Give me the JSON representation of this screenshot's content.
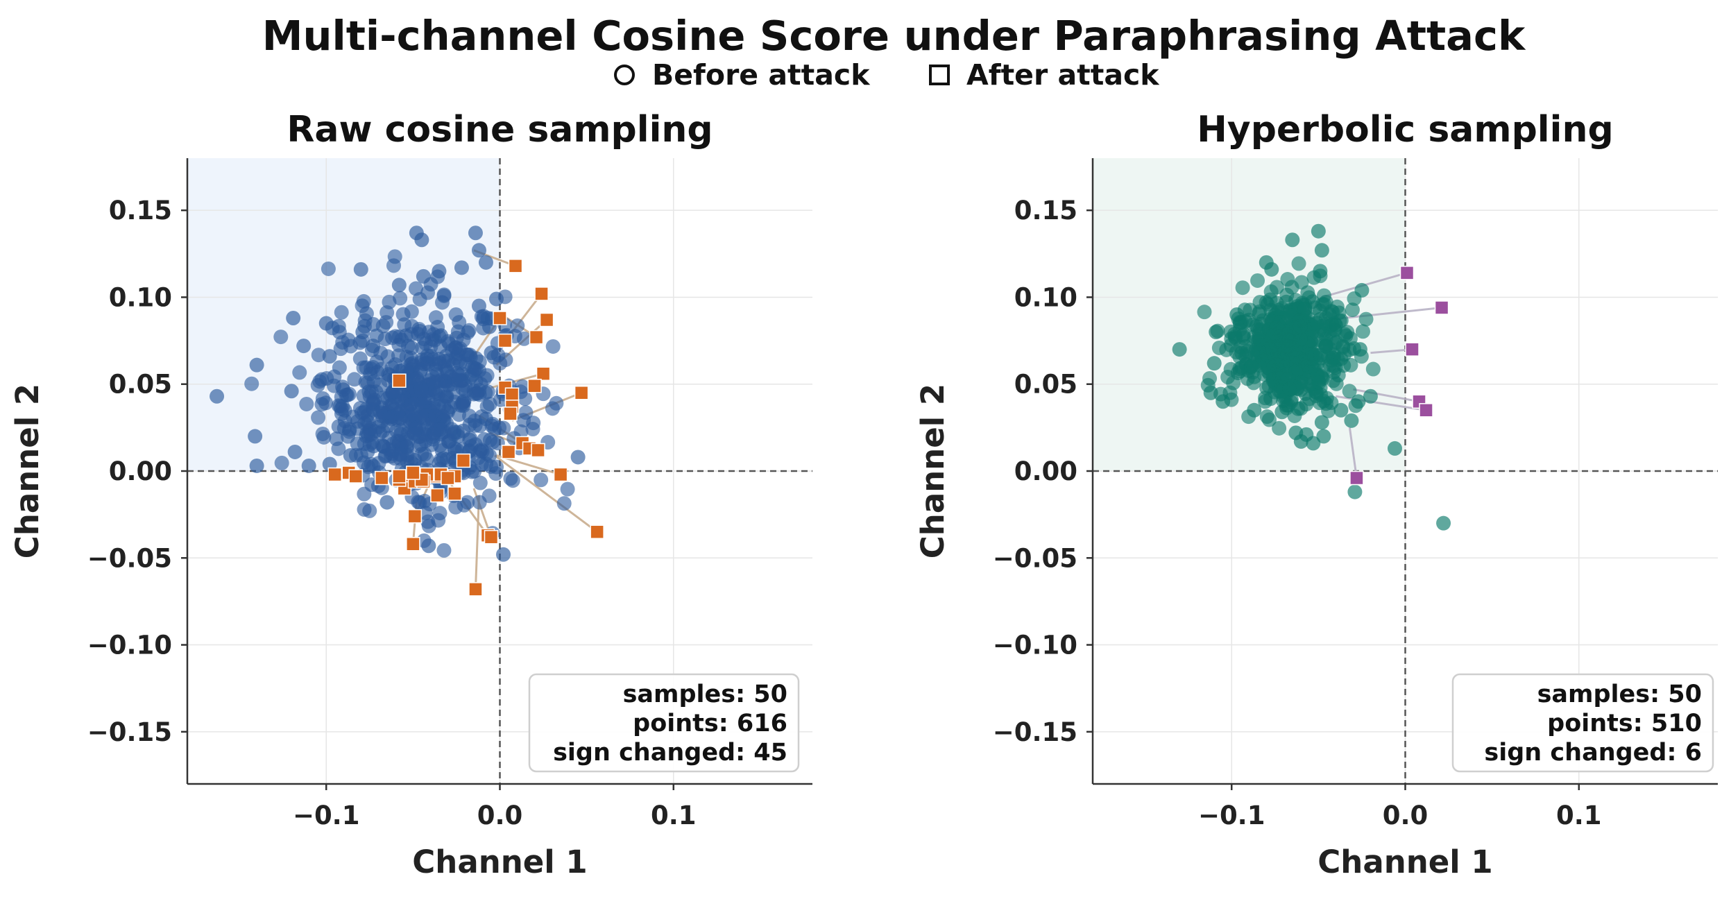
{
  "figure": {
    "title": "Multi-channel Cosine Score under Paraphrasing Attack",
    "legend": [
      {
        "marker": "circle",
        "label": "Before attack"
      },
      {
        "marker": "square",
        "label": "After attack"
      }
    ]
  },
  "chart_data": [
    {
      "type": "scatter",
      "title": "Raw cosine sampling",
      "xlabel": "Channel 1",
      "ylabel": "Channel 2",
      "xlim": [
        -0.18,
        0.18
      ],
      "ylim": [
        -0.18,
        0.18
      ],
      "xticks": [
        -0.1,
        0.0,
        0.1
      ],
      "xtick_labels": [
        "−0.1",
        "0.0",
        "0.1"
      ],
      "yticks": [
        0.15,
        0.1,
        0.05,
        0.0,
        -0.05,
        -0.1,
        -0.15
      ],
      "ytick_labels": [
        "0.15",
        "0.10",
        "0.05",
        "0.00",
        "−0.05",
        "−0.10",
        "−0.15"
      ],
      "grid": true,
      "shaded_quadrant": "upper-left",
      "colors": {
        "shade": "#eef4fc",
        "before": "#2b5a9c",
        "after": "#d9691e",
        "link": "#c9ae8e"
      },
      "stats": {
        "samples": "samples: 50",
        "points": "points: 616",
        "sign_changed": "sign changed: 45"
      },
      "before_cluster": {
        "center": [
          -0.045,
          0.04
        ],
        "spread": [
          0.028,
          0.028
        ],
        "count": 616
      },
      "before_points": [
        [
          -0.163,
          0.043
        ],
        [
          -0.14,
          0.061
        ],
        [
          -0.141,
          0.02
        ],
        [
          -0.14,
          0.003
        ],
        [
          -0.12,
          0.046
        ],
        [
          -0.113,
          0.072
        ],
        [
          -0.119,
          0.088
        ],
        [
          -0.1,
          0.085
        ],
        [
          -0.098,
          0.066
        ],
        [
          -0.118,
          0.011
        ],
        [
          -0.11,
          0.003
        ],
        [
          -0.079,
          0.08
        ],
        [
          -0.08,
          0.116
        ],
        [
          -0.058,
          0.107
        ],
        [
          -0.048,
          0.137
        ],
        [
          -0.045,
          0.133
        ],
        [
          -0.044,
          0.112
        ],
        [
          -0.035,
          0.115
        ],
        [
          -0.022,
          0.117
        ],
        [
          -0.014,
          0.137
        ],
        [
          -0.012,
          0.127
        ],
        [
          -0.008,
          0.12
        ],
        [
          -0.006,
          0.083
        ],
        [
          0.045,
          0.008
        ],
        [
          0.002,
          -0.048
        ],
        [
          -0.041,
          -0.043
        ],
        [
          -0.034,
          -0.01
        ],
        [
          -0.065,
          -0.018
        ],
        [
          -0.048,
          -0.007
        ],
        [
          -0.086,
          0.009
        ],
        [
          -0.098,
          0.004
        ],
        [
          -0.073,
          0.072
        ],
        [
          -0.034,
          0.078
        ],
        [
          -0.017,
          0.054
        ],
        [
          -0.005,
          0.068
        ],
        [
          -0.008,
          0.03
        ],
        [
          -0.024,
          0.02
        ],
        [
          -0.007,
          0.088
        ],
        [
          -0.002,
          0.099
        ],
        [
          -0.012,
          0.095
        ]
      ],
      "after_points": [
        [
          0.009,
          0.118
        ],
        [
          0.024,
          0.102
        ],
        [
          0.027,
          0.087
        ],
        [
          0.0,
          0.088
        ],
        [
          0.003,
          0.075
        ],
        [
          0.021,
          0.077
        ],
        [
          0.025,
          0.056
        ],
        [
          0.02,
          0.049
        ],
        [
          0.047,
          0.045
        ],
        [
          0.003,
          0.048
        ],
        [
          0.007,
          0.044
        ],
        [
          0.007,
          0.037
        ],
        [
          0.006,
          0.033
        ],
        [
          0.013,
          0.016
        ],
        [
          0.017,
          0.013
        ],
        [
          0.022,
          0.012
        ],
        [
          0.005,
          0.011
        ],
        [
          0.035,
          -0.002
        ],
        [
          0.056,
          -0.035
        ],
        [
          -0.007,
          -0.037
        ],
        [
          -0.005,
          -0.038
        ],
        [
          -0.014,
          -0.068
        ],
        [
          -0.05,
          -0.042
        ],
        [
          -0.049,
          -0.026
        ],
        [
          -0.036,
          -0.014
        ],
        [
          -0.026,
          -0.013
        ],
        [
          -0.053,
          -0.004
        ],
        [
          -0.055,
          -0.01
        ],
        [
          -0.049,
          -0.006
        ],
        [
          -0.037,
          -0.003
        ],
        [
          -0.034,
          -0.002
        ],
        [
          -0.042,
          -0.002
        ],
        [
          -0.058,
          -0.005
        ],
        [
          -0.087,
          -0.001
        ],
        [
          -0.083,
          -0.003
        ],
        [
          -0.095,
          -0.002
        ],
        [
          -0.068,
          -0.004
        ],
        [
          -0.021,
          0.006
        ],
        [
          -0.058,
          0.052
        ],
        [
          -0.026,
          -0.003
        ],
        [
          -0.044,
          -0.006
        ],
        [
          -0.03,
          -0.004
        ],
        [
          -0.045,
          -0.005
        ],
        [
          -0.058,
          -0.003
        ],
        [
          -0.05,
          -0.001
        ]
      ],
      "links": [
        [
          [
            0.009,
            0.118
          ],
          [
            -0.015,
            0.127
          ]
        ],
        [
          [
            0.024,
            0.102
          ],
          [
            0.004,
            0.076
          ]
        ],
        [
          [
            0.027,
            0.087
          ],
          [
            -0.002,
            0.061
          ]
        ],
        [
          [
            0.0,
            0.088
          ],
          [
            -0.015,
            0.066
          ]
        ],
        [
          [
            0.025,
            0.056
          ],
          [
            -0.005,
            0.048
          ]
        ],
        [
          [
            0.047,
            0.045
          ],
          [
            0.007,
            0.029
          ]
        ],
        [
          [
            0.035,
            -0.002
          ],
          [
            -0.002,
            0.009
          ]
        ],
        [
          [
            0.056,
            -0.035
          ],
          [
            -0.003,
            0.009
          ]
        ],
        [
          [
            -0.005,
            -0.038
          ],
          [
            -0.015,
            -0.01
          ]
        ],
        [
          [
            -0.014,
            -0.068
          ],
          [
            -0.012,
            -0.014
          ]
        ],
        [
          [
            -0.049,
            -0.026
          ],
          [
            -0.041,
            -0.008
          ]
        ],
        [
          [
            -0.05,
            -0.042
          ],
          [
            -0.048,
            -0.018
          ]
        ],
        [
          [
            -0.007,
            -0.037
          ],
          [
            -0.028,
            -0.008
          ]
        ],
        [
          [
            0.013,
            0.016
          ],
          [
            -0.012,
            0.032
          ]
        ],
        [
          [
            0.021,
            0.077
          ],
          [
            0.001,
            0.09
          ]
        ],
        [
          [
            0.017,
            0.013
          ],
          [
            -0.006,
            0.022
          ]
        ]
      ]
    },
    {
      "type": "scatter",
      "title": "Hyperbolic sampling",
      "xlabel": "Channel 1",
      "ylabel": "Channel 2",
      "xlim": [
        -0.18,
        0.18
      ],
      "ylim": [
        -0.18,
        0.18
      ],
      "xticks": [
        -0.1,
        0.0,
        0.1
      ],
      "xtick_labels": [
        "−0.1",
        "0.0",
        "0.1"
      ],
      "yticks": [
        0.15,
        0.1,
        0.05,
        0.0,
        -0.05,
        -0.1,
        -0.15
      ],
      "ytick_labels": [
        "0.15",
        "0.10",
        "0.05",
        "0.00",
        "−0.05",
        "−0.10",
        "−0.15"
      ],
      "grid": true,
      "shaded_quadrant": "upper-left",
      "colors": {
        "shade": "#eef6f3",
        "before": "#0b7a6a",
        "after": "#9b4f9e",
        "link": "#b9b3c6"
      },
      "stats": {
        "samples": "samples: 50",
        "points": "points: 510",
        "sign_changed": "sign changed: 6"
      },
      "before_cluster": {
        "center": [
          -0.067,
          0.07
        ],
        "spread": [
          0.016,
          0.016
        ],
        "count": 510
      },
      "before_points": [
        [
          -0.13,
          0.07
        ],
        [
          -0.109,
          0.08
        ],
        [
          -0.11,
          0.062
        ],
        [
          -0.112,
          0.045
        ],
        [
          -0.105,
          0.04
        ],
        [
          -0.08,
          0.12
        ],
        [
          -0.077,
          0.116
        ],
        [
          -0.065,
          0.133
        ],
        [
          -0.05,
          0.138
        ],
        [
          -0.048,
          0.127
        ],
        [
          -0.049,
          0.115
        ],
        [
          -0.025,
          0.104
        ],
        [
          -0.027,
          0.04
        ],
        [
          -0.02,
          0.043
        ],
        [
          -0.026,
          0.07
        ],
        [
          -0.037,
          0.035
        ],
        [
          -0.031,
          0.029
        ],
        [
          -0.047,
          0.02
        ],
        [
          -0.057,
          0.021
        ],
        [
          -0.06,
          0.017
        ],
        [
          -0.053,
          0.016
        ],
        [
          -0.063,
          0.022
        ],
        [
          -0.006,
          0.013
        ],
        [
          -0.029,
          -0.012
        ],
        [
          0.022,
          -0.03
        ],
        [
          -0.087,
          0.035
        ],
        [
          -0.071,
          0.034
        ],
        [
          -0.048,
          0.028
        ],
        [
          -0.04,
          0.084
        ],
        [
          -0.097,
          0.09
        ]
      ],
      "after_points": [
        [
          0.001,
          0.114
        ],
        [
          0.021,
          0.094
        ],
        [
          0.004,
          0.07
        ],
        [
          0.008,
          0.04
        ],
        [
          0.012,
          0.035
        ],
        [
          -0.028,
          -0.004
        ]
      ],
      "links": [
        [
          [
            0.001,
            0.114
          ],
          [
            -0.048,
            0.1
          ]
        ],
        [
          [
            0.021,
            0.094
          ],
          [
            -0.045,
            0.087
          ]
        ],
        [
          [
            0.004,
            0.07
          ],
          [
            -0.02,
            0.068
          ]
        ],
        [
          [
            0.008,
            0.04
          ],
          [
            -0.03,
            0.047
          ]
        ],
        [
          [
            0.012,
            0.035
          ],
          [
            -0.04,
            0.043
          ]
        ],
        [
          [
            -0.028,
            -0.004
          ],
          [
            -0.032,
            0.025
          ]
        ]
      ]
    }
  ]
}
